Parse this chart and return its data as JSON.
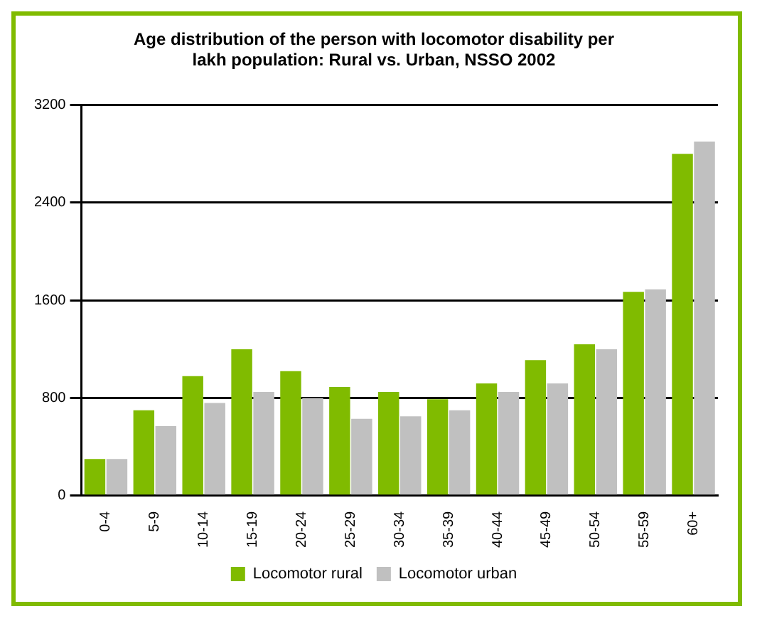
{
  "chart_data": {
    "type": "bar",
    "title": "Age distribution of the person with locomotor disability per lakh population: Rural vs. Urban, NSSO 2002",
    "categories": [
      "0-4",
      "5-9",
      "10-14",
      "15-19",
      "20-24",
      "25-29",
      "30-34",
      "35-39",
      "40-44",
      "45-49",
      "50-54",
      "55-59",
      "60+"
    ],
    "series": [
      {
        "name": "Locomotor rural",
        "color": "#80bb00",
        "values": [
          300,
          700,
          980,
          1200,
          1020,
          890,
          850,
          790,
          920,
          1110,
          1240,
          1670,
          2800
        ]
      },
      {
        "name": "Locomotor urban",
        "color": "#c0c0c0",
        "values": [
          300,
          570,
          760,
          850,
          800,
          630,
          650,
          700,
          850,
          920,
          1200,
          1690,
          2900
        ]
      }
    ],
    "ylim": [
      0,
      3200
    ],
    "yticks": [
      0,
      800,
      1600,
      2400,
      3200
    ],
    "grid": "y",
    "legend": "bottom"
  }
}
